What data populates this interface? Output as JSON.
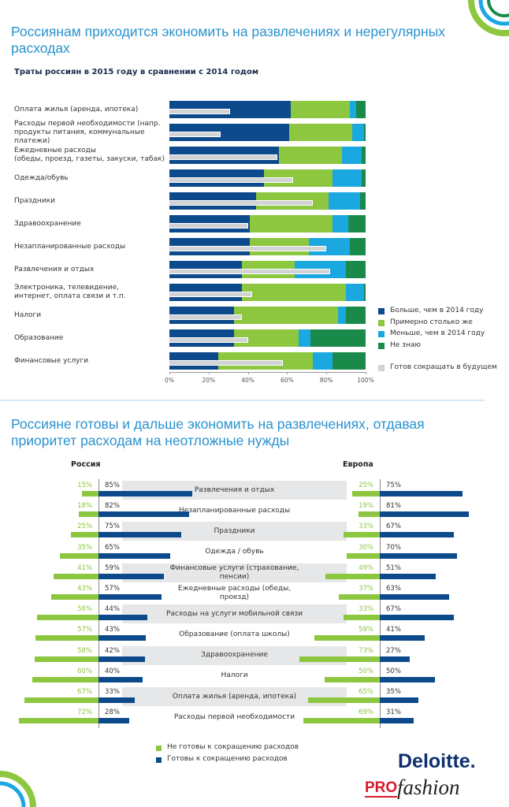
{
  "headings": [
    "Россиянам приходится экономить на развлечениях и нерегулярных\nрасходах",
    "Россияне готовы и дальше экономить на развлечениях, отдавая\nприоритет расходам на неотложные нужды"
  ],
  "chart_data": [
    {
      "type": "bar",
      "orientation": "horizontal",
      "stacked": true,
      "title": "Траты россиян в 2015 году в сравнении с 2014 годом",
      "categories": [
        "Оплата жилья (аренда, ипотека)",
        "Расходы первой необходимости (напр.\nпродукты питания, коммунальные платежи)",
        "Ежедневные расходы\n(обеды, проезд, газеты, закуски, табак)",
        "Одежда/обувь",
        "Праздники",
        "Здравоохранение",
        "Незапланированные расходы",
        "Развлечения и отдых",
        "Электроника, телевидение,\nинтернет, оплата связи и т.п.",
        "Налоги",
        "Образование",
        "Финансовые услуги"
      ],
      "series": [
        {
          "name": "Больше, чем в 2014 году",
          "color": "#0d4a8c",
          "values": [
            62,
            61,
            56,
            48,
            44,
            41,
            41,
            37,
            37,
            33,
            33,
            25
          ]
        },
        {
          "name": "Примерно столько же",
          "color": "#8dc63f",
          "values": [
            30,
            32,
            32,
            35,
            37,
            42,
            30,
            27,
            53,
            53,
            33,
            48
          ]
        },
        {
          "name": "Меньше, чем в 2014 году",
          "color": "#1ba8e0",
          "values": [
            3,
            6,
            10,
            15,
            16,
            8,
            21,
            26,
            9,
            4,
            6,
            10
          ]
        },
        {
          "name": "Не знаю",
          "color": "#1a8a4a",
          "values": [
            5,
            1,
            2,
            2,
            3,
            9,
            8,
            10,
            1,
            10,
            28,
            17
          ]
        }
      ],
      "future": {
        "name": "Готов сокращать в будущем",
        "color": "#d1d3d4",
        "values": [
          31,
          26,
          55,
          63,
          73,
          40,
          80,
          82,
          42,
          37,
          40,
          58
        ]
      },
      "xlim": [
        0,
        100
      ],
      "xticks": [
        {
          "value": 0,
          "label": "0%"
        },
        {
          "value": 20,
          "label": "20%"
        },
        {
          "value": 40,
          "label": "40%"
        },
        {
          "value": 60,
          "label": "60%"
        },
        {
          "value": 80,
          "label": "80%"
        },
        {
          "value": 100,
          "label": "100%"
        }
      ],
      "legend": "right"
    },
    {
      "type": "butterfly",
      "categories": [
        "Развлечения и отдых",
        "Незапланированные расходы",
        "Праздники",
        "Одежда / обувь",
        "Финансовые услуги (страхование,\nпенсии)",
        "Ежедневные расходы (обеды,\nпроезд)",
        "Расходы на услуги мобильной связи",
        "Образование (оплата школы)",
        "Здравоохранение",
        "Налоги",
        "Оплата жилья (аренда, ипотека)",
        "Расходы первой необходимости"
      ],
      "legend": [
        {
          "name": "Не готовы к сокращению расходов",
          "color": "#8dc63f"
        },
        {
          "name": "Готовы к сокращению расходов",
          "color": "#0d4a8c"
        }
      ],
      "panels": [
        {
          "title": "Россия",
          "series": [
            {
              "values": [
                15,
                18,
                25,
                35,
                41,
                43,
                56,
                57,
                58,
                60,
                67,
                72
              ],
              "value_labels": [
                "15%",
                "18%",
                "25%",
                "35%",
                "41%",
                "43%",
                "56%",
                "57%",
                "58%",
                "60%",
                "67%",
                "72%"
              ]
            },
            {
              "values": [
                85,
                82,
                75,
                65,
                59,
                57,
                44,
                43,
                42,
                40,
                33,
                28
              ],
              "value_labels": [
                "85%",
                "82%",
                "75%",
                "65%",
                "59%",
                "57%",
                "44%",
                "43%",
                "42%",
                "40%",
                "33%",
                "28%"
              ]
            }
          ]
        },
        {
          "title": "Европа",
          "series": [
            {
              "values": [
                25,
                19,
                33,
                30,
                49,
                37,
                33,
                59,
                73,
                50,
                65,
                69
              ],
              "value_labels": [
                "25%",
                "19%",
                "33%",
                "30%",
                "49%",
                "37%",
                "33%",
                "59%",
                "73%",
                "50%",
                "65%",
                "69%"
              ]
            },
            {
              "values": [
                75,
                81,
                67,
                70,
                51,
                63,
                67,
                41,
                27,
                50,
                35,
                31
              ],
              "value_labels": [
                "75%",
                "81%",
                "67%",
                "70%",
                "51%",
                "63%",
                "67%",
                "41%",
                "27%",
                "50%",
                "35%",
                "31%"
              ]
            }
          ]
        }
      ]
    }
  ],
  "logo": {
    "brand": "Deloitte.",
    "pro": "PRO",
    "fashion": "fashion"
  }
}
